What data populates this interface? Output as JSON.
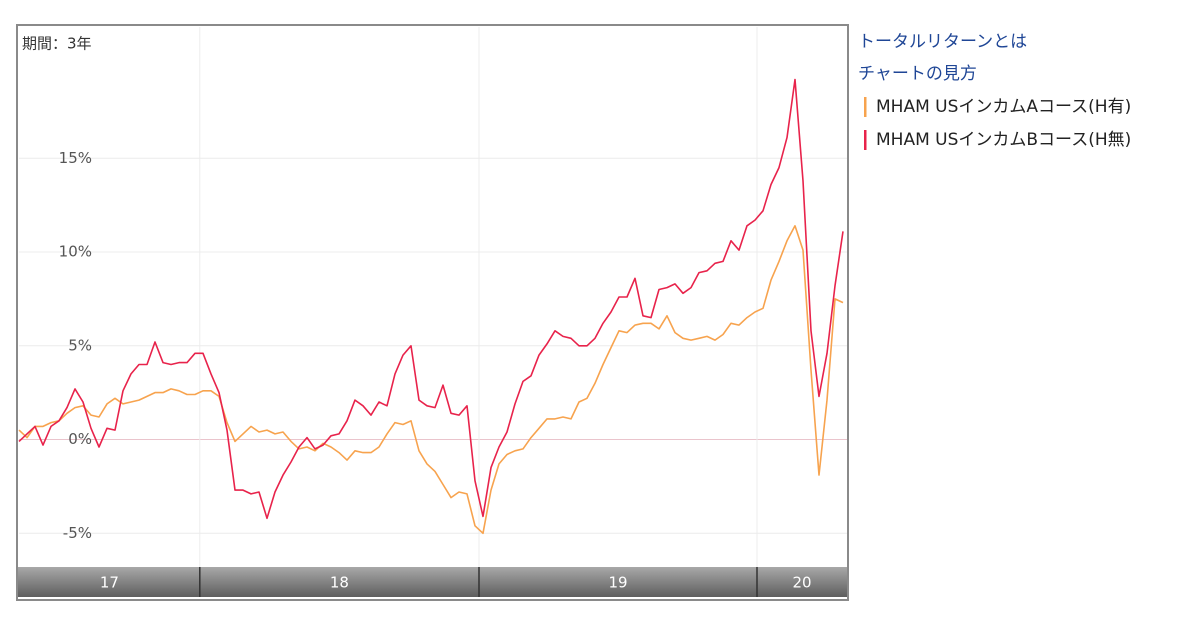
{
  "chart_data": {
    "type": "line",
    "period_label": "期間：3年",
    "links": [
      "トータルリターンとは",
      "チャートの見方"
    ],
    "xlim": [
      0,
      103.5
    ],
    "ylim": [
      -6.8,
      22
    ],
    "yticks": [
      {
        "value": -5,
        "label": "-5%"
      },
      {
        "value": 0,
        "label": "0%"
      },
      {
        "value": 5,
        "label": "5%"
      },
      {
        "value": 10,
        "label": "10%"
      },
      {
        "value": 15,
        "label": "15%"
      }
    ],
    "grid": true,
    "periods": [
      {
        "label": "17",
        "from": 0,
        "to": 22.6
      },
      {
        "label": "18",
        "from": 22.6,
        "to": 57.5
      },
      {
        "label": "19",
        "from": 57.5,
        "to": 92.25
      },
      {
        "label": "20",
        "from": 92.25,
        "to": 103.5
      }
    ],
    "series": [
      {
        "name": "MHAM USインカムAコース(H有)",
        "color": "#f7a34e",
        "values": [
          0.5,
          0.1,
          0.7,
          0.7,
          0.9,
          1.0,
          1.4,
          1.7,
          1.8,
          1.3,
          1.2,
          1.9,
          2.2,
          1.9,
          2.0,
          2.1,
          2.3,
          2.5,
          2.5,
          2.7,
          2.6,
          2.4,
          2.4,
          2.6,
          2.6,
          2.3,
          0.9,
          -0.1,
          0.3,
          0.7,
          0.4,
          0.5,
          0.3,
          0.4,
          -0.1,
          -0.5,
          -0.4,
          -0.6,
          -0.2,
          -0.4,
          -0.7,
          -1.1,
          -0.6,
          -0.7,
          -0.7,
          -0.4,
          0.3,
          0.9,
          0.8,
          1.0,
          -0.6,
          -1.3,
          -1.7,
          -2.4,
          -3.1,
          -2.8,
          -2.9,
          -4.6,
          -5.0,
          -2.7,
          -1.3,
          -0.8,
          -0.6,
          -0.5,
          0.1,
          0.6,
          1.1,
          1.1,
          1.2,
          1.1,
          2.0,
          2.2,
          3.0,
          4.0,
          4.9,
          5.8,
          5.7,
          6.1,
          6.2,
          6.2,
          5.9,
          6.6,
          5.7,
          5.4,
          5.3,
          5.4,
          5.5,
          5.3,
          5.6,
          6.2,
          6.1,
          6.5,
          6.8,
          7.0,
          8.5,
          9.5,
          10.6,
          11.4,
          10.1,
          3.7,
          -1.9,
          2.1,
          7.5,
          7.3
        ]
      },
      {
        "name": "MHAM USインカムBコース(H無)",
        "color": "#e8234b",
        "values": [
          -0.1,
          0.3,
          0.7,
          -0.3,
          0.7,
          1.0,
          1.7,
          2.7,
          2.0,
          0.6,
          -0.4,
          0.6,
          0.5,
          2.6,
          3.5,
          4.0,
          4.0,
          5.2,
          4.1,
          4.0,
          4.1,
          4.1,
          4.6,
          4.6,
          3.5,
          2.5,
          0.5,
          -2.7,
          -2.7,
          -2.9,
          -2.8,
          -4.2,
          -2.8,
          -1.9,
          -1.2,
          -0.4,
          0.1,
          -0.5,
          -0.3,
          0.2,
          0.3,
          1.0,
          2.1,
          1.8,
          1.3,
          2.0,
          1.8,
          3.5,
          4.5,
          5.0,
          2.1,
          1.8,
          1.7,
          2.9,
          1.4,
          1.3,
          1.8,
          -2.2,
          -4.1,
          -1.5,
          -0.4,
          0.4,
          1.9,
          3.1,
          3.4,
          4.5,
          5.1,
          5.8,
          5.5,
          5.4,
          5.0,
          5.0,
          5.4,
          6.2,
          6.8,
          7.6,
          7.6,
          8.6,
          6.6,
          6.5,
          8.0,
          8.1,
          8.3,
          7.8,
          8.1,
          8.9,
          9.0,
          9.4,
          9.5,
          10.6,
          10.1,
          11.4,
          11.7,
          12.2,
          13.6,
          14.5,
          16.1,
          19.2,
          13.8,
          5.8,
          2.3,
          4.6,
          8.2,
          11.1
        ]
      }
    ]
  }
}
